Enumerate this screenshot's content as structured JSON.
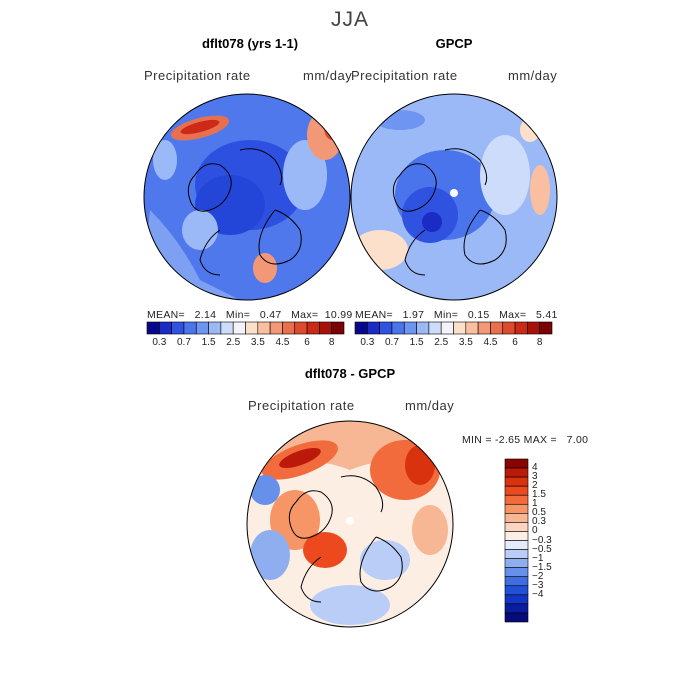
{
  "season": "JJA",
  "panels": [
    {
      "title": "dflt078 (yrs 1-1)",
      "variable": "Precipitation rate",
      "units": "mm/day",
      "mean_label": "MEAN=",
      "mean": "2.14",
      "min_label": "Min=",
      "min": "0.47",
      "max_label": "Max=",
      "max": "10.99"
    },
    {
      "title": "GPCP",
      "variable": "Precipitation rate",
      "units": "mm/day",
      "mean_label": "MEAN=",
      "mean": "1.97",
      "min_label": "Min=",
      "min": "0.15",
      "max_label": "Max=",
      "max": "5.41"
    }
  ],
  "diff_panel": {
    "title": "dflt078 - GPCP",
    "variable": "Precipitation rate",
    "units": "mm/day",
    "min_label": "MIN =",
    "min": "-2.65",
    "max_label": "MAX =",
    "max": "7.00"
  },
  "abs_colorbar": {
    "ticks": [
      "0.3",
      "0.7",
      "1.5",
      "2.5",
      "3.5",
      "4.5",
      "6",
      "8"
    ],
    "colors": [
      "#08088c",
      "#1a2cc4",
      "#2f52e0",
      "#4a74ec",
      "#6e95f2",
      "#9cb9f7",
      "#cddcfa",
      "#f3f3fb",
      "#fde0cc",
      "#f9bfa0",
      "#f29877",
      "#e8704f",
      "#dd4a2e",
      "#cc2a16",
      "#a81208",
      "#7a0303"
    ]
  },
  "diff_colorbar": {
    "ticks": [
      "4",
      "3",
      "2",
      "1.5",
      "1",
      "0.5",
      "0.3",
      "0",
      "-0.3",
      "-0.5",
      "-1",
      "-1.5",
      "-2",
      "-3",
      "-4"
    ],
    "colors": [
      "#8a0404",
      "#bb1a0b",
      "#d9320f",
      "#ec4a1e",
      "#f26b3c",
      "#f69566",
      "#f8b794",
      "#fbd5c0",
      "#fdeee4",
      "#e4ecfb",
      "#b9cdf6",
      "#8eaef0",
      "#6690ea",
      "#3f6ee3",
      "#2350d9",
      "#1334c4",
      "#0a1ca0",
      "#050b7a"
    ]
  }
}
